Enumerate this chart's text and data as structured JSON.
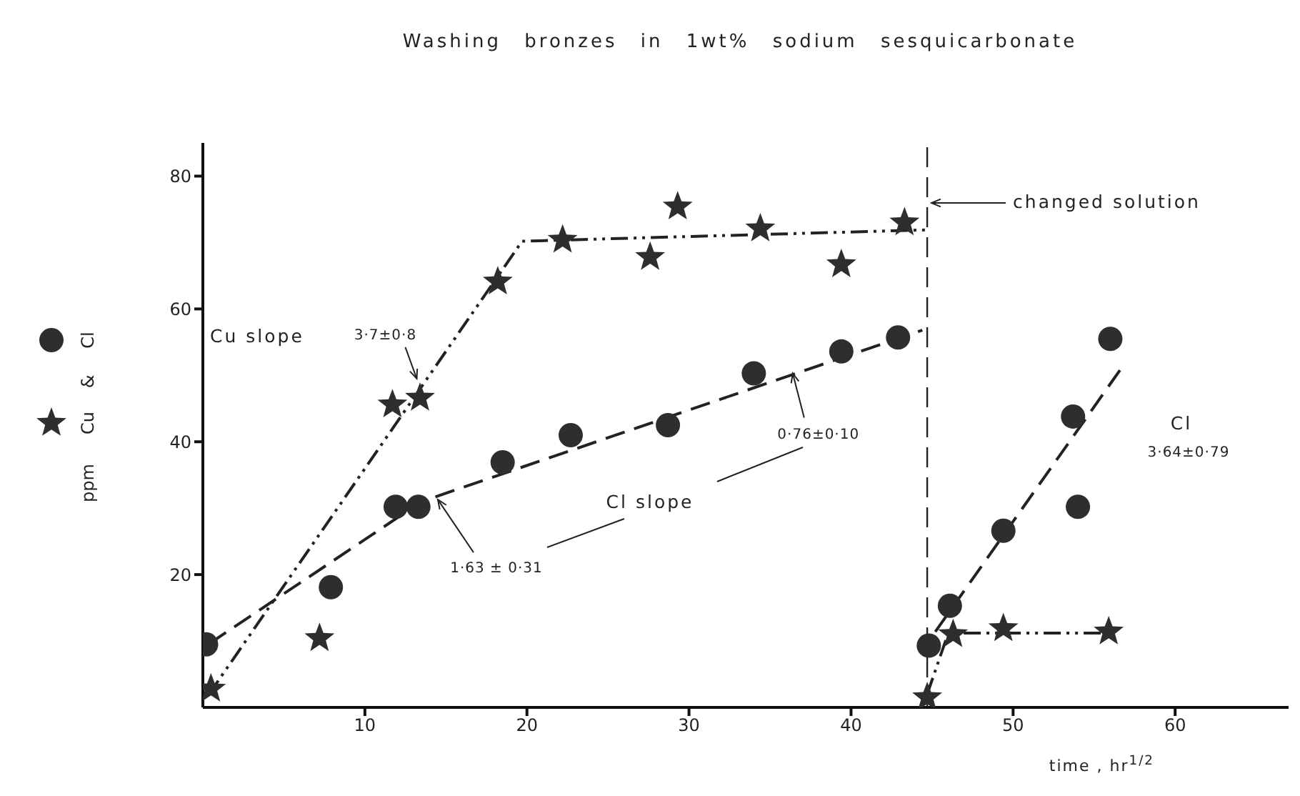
{
  "chart_data": {
    "type": "scatter",
    "title": "Washing bronzes in 1wt% sodium sesquicarbonate",
    "xlabel": "time , hr$^{1/2}$",
    "ylabel": "ppm",
    "xlim": [
      0,
      67
    ],
    "xticks": [
      10,
      20,
      30,
      40,
      50,
      60
    ],
    "ylim": [
      0,
      85
    ],
    "yticks": [
      20,
      40,
      60,
      80
    ],
    "grid": false,
    "legend": "left",
    "series": [
      {
        "name": "Cl",
        "marker": "circle",
        "color": "#2e2e2e",
        "x": [
          0.2,
          7.9,
          11.9,
          13.3,
          18.5,
          22.7,
          28.7,
          34.0,
          39.4,
          42.9,
          44.8,
          46.1,
          49.4,
          54.0,
          53.7,
          56.0
        ],
        "values": [
          9.5,
          18.1,
          30.2,
          30.2,
          36.9,
          41,
          42.5,
          50.3,
          53.6,
          55.7,
          9.3,
          15.3,
          26.6,
          30.2,
          43.8,
          55.5
        ]
      },
      {
        "name": "Cu",
        "marker": "star",
        "color": "#2e2e2e",
        "x": [
          0.5,
          7.2,
          11.7,
          13.4,
          18.2,
          22.2,
          27.6,
          29.3,
          34.4,
          39.4,
          43.3,
          44.7,
          46.3,
          49.4,
          55.9
        ],
        "values": [
          2.8,
          10.4,
          45.6,
          46.6,
          64.1,
          70.4,
          67.8,
          75.4,
          72.1,
          66.7,
          73.0,
          1.5,
          11.0,
          11.9,
          11.4
        ]
      },
      {
        "type": "line",
        "line_style": "dotted",
        "color": "#222222",
        "x": [
          0.35,
          19.7,
          44.6
        ],
        "values": [
          1.9,
          70.2,
          71.9
        ]
      },
      {
        "type": "line",
        "line_style": "dotted",
        "color": "#222222",
        "x": [
          44.7,
          46.0,
          55.8
        ],
        "values": [
          2,
          11.2,
          11.2
        ]
      },
      {
        "type": "line",
        "line_style": "dashed",
        "color": "#222222",
        "x": [
          0.4,
          13.5,
          44.4
        ],
        "values": [
          9.6,
          31,
          56.8
        ]
      },
      {
        "type": "line",
        "line_style": "dashed",
        "color": "#222222",
        "x": [
          45.2,
          56.6
        ],
        "values": [
          11.4,
          50.8
        ]
      }
    ],
    "ref_lines": [
      {
        "axis": "x",
        "value": 44.7,
        "label": "changed solution",
        "line_style": "dashed",
        "color": "#222222"
      }
    ],
    "annotations": [
      "Cu slope",
      {
        "text": "3·7±0·8",
        "x": 13.2,
        "y": 49.5
      },
      "Cl slope",
      {
        "text": "1·63 ± 0·31",
        "x": 14.5,
        "y": 31.3
      },
      {
        "text": "0·76±0·10",
        "x": 36.4,
        "y": 50.3
      },
      "Cl",
      "3·64±0·79",
      "&"
    ]
  }
}
